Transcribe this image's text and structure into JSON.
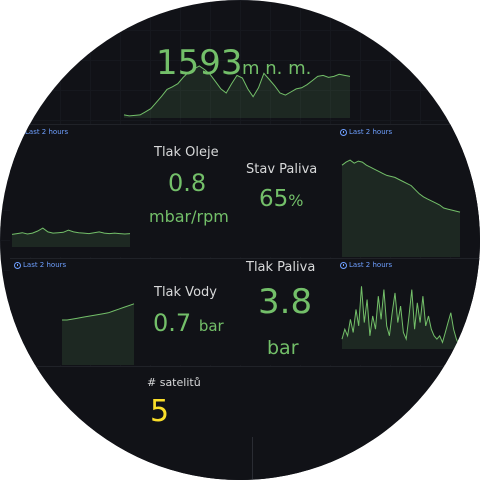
{
  "panels": {
    "altitude": {
      "value": "1593",
      "unit": "m n. m.",
      "color": "#73bf69",
      "sparkline": [
        0.06,
        0.04,
        0.05,
        0.06,
        0.12,
        0.18,
        0.3,
        0.42,
        0.55,
        0.6,
        0.66,
        0.78,
        0.88,
        0.94,
        1.0,
        0.93,
        0.84,
        0.7,
        0.56,
        0.48,
        0.66,
        0.82,
        0.77,
        0.56,
        0.41,
        0.58,
        0.86,
        0.74,
        0.62,
        0.48,
        0.44,
        0.5,
        0.56,
        0.58,
        0.64,
        0.72,
        0.8,
        0.82,
        0.78,
        0.8,
        0.84,
        0.82,
        0.8
      ]
    },
    "oil_pressure": {
      "time_range": "Last 2 hours",
      "title": "Tlak Oleje",
      "value": "0.8",
      "unit": "mbar/rpm",
      "sparkline": [
        0.3,
        0.32,
        0.34,
        0.31,
        0.33,
        0.38,
        0.45,
        0.36,
        0.33,
        0.34,
        0.35,
        0.4,
        0.36,
        0.34,
        0.33,
        0.32,
        0.34,
        0.36,
        0.33,
        0.32,
        0.33,
        0.32,
        0.31,
        0.32
      ]
    },
    "fuel_state": {
      "time_range": "Last 2 hours",
      "title": "Stav Paliva",
      "value": "65",
      "unit": "%",
      "sparkline": [
        0.9,
        0.93,
        0.95,
        0.92,
        0.94,
        0.93,
        0.9,
        0.88,
        0.86,
        0.84,
        0.82,
        0.8,
        0.79,
        0.78,
        0.76,
        0.74,
        0.72,
        0.7,
        0.66,
        0.62,
        0.59,
        0.57,
        0.55,
        0.53,
        0.51,
        0.48,
        0.47,
        0.46,
        0.45,
        0.44
      ]
    },
    "water_pressure": {
      "time_range": "Last 2 hours",
      "title": "Tlak Vody",
      "value": "0.7",
      "unit": "bar",
      "sparkline": [
        0.5,
        0.5,
        0.51,
        0.52,
        0.53,
        0.54,
        0.55,
        0.56,
        0.57,
        0.58,
        0.6,
        0.62,
        0.64,
        0.66,
        0.68
      ]
    },
    "fuel_pressure": {
      "time_range": "Last 2 hours",
      "title": "Tlak Paliva",
      "value": "3.8",
      "unit": "bar",
      "sparkline": [
        0.15,
        0.3,
        0.2,
        0.45,
        0.25,
        0.6,
        0.35,
        0.95,
        0.4,
        0.75,
        0.2,
        0.5,
        0.3,
        0.8,
        0.45,
        0.9,
        0.35,
        0.2,
        0.55,
        0.85,
        0.4,
        0.65,
        0.25,
        0.15,
        0.5,
        0.9,
        0.3,
        0.7,
        0.4,
        0.8,
        0.35,
        0.5,
        0.3,
        0.2,
        0.15,
        0.2,
        0.1,
        0.25,
        0.4,
        0.55,
        0.3,
        0.15,
        0.05,
        0.1
      ]
    },
    "satellites": {
      "title": "# satelitů",
      "value": "5",
      "color": "#fade2a"
    }
  }
}
